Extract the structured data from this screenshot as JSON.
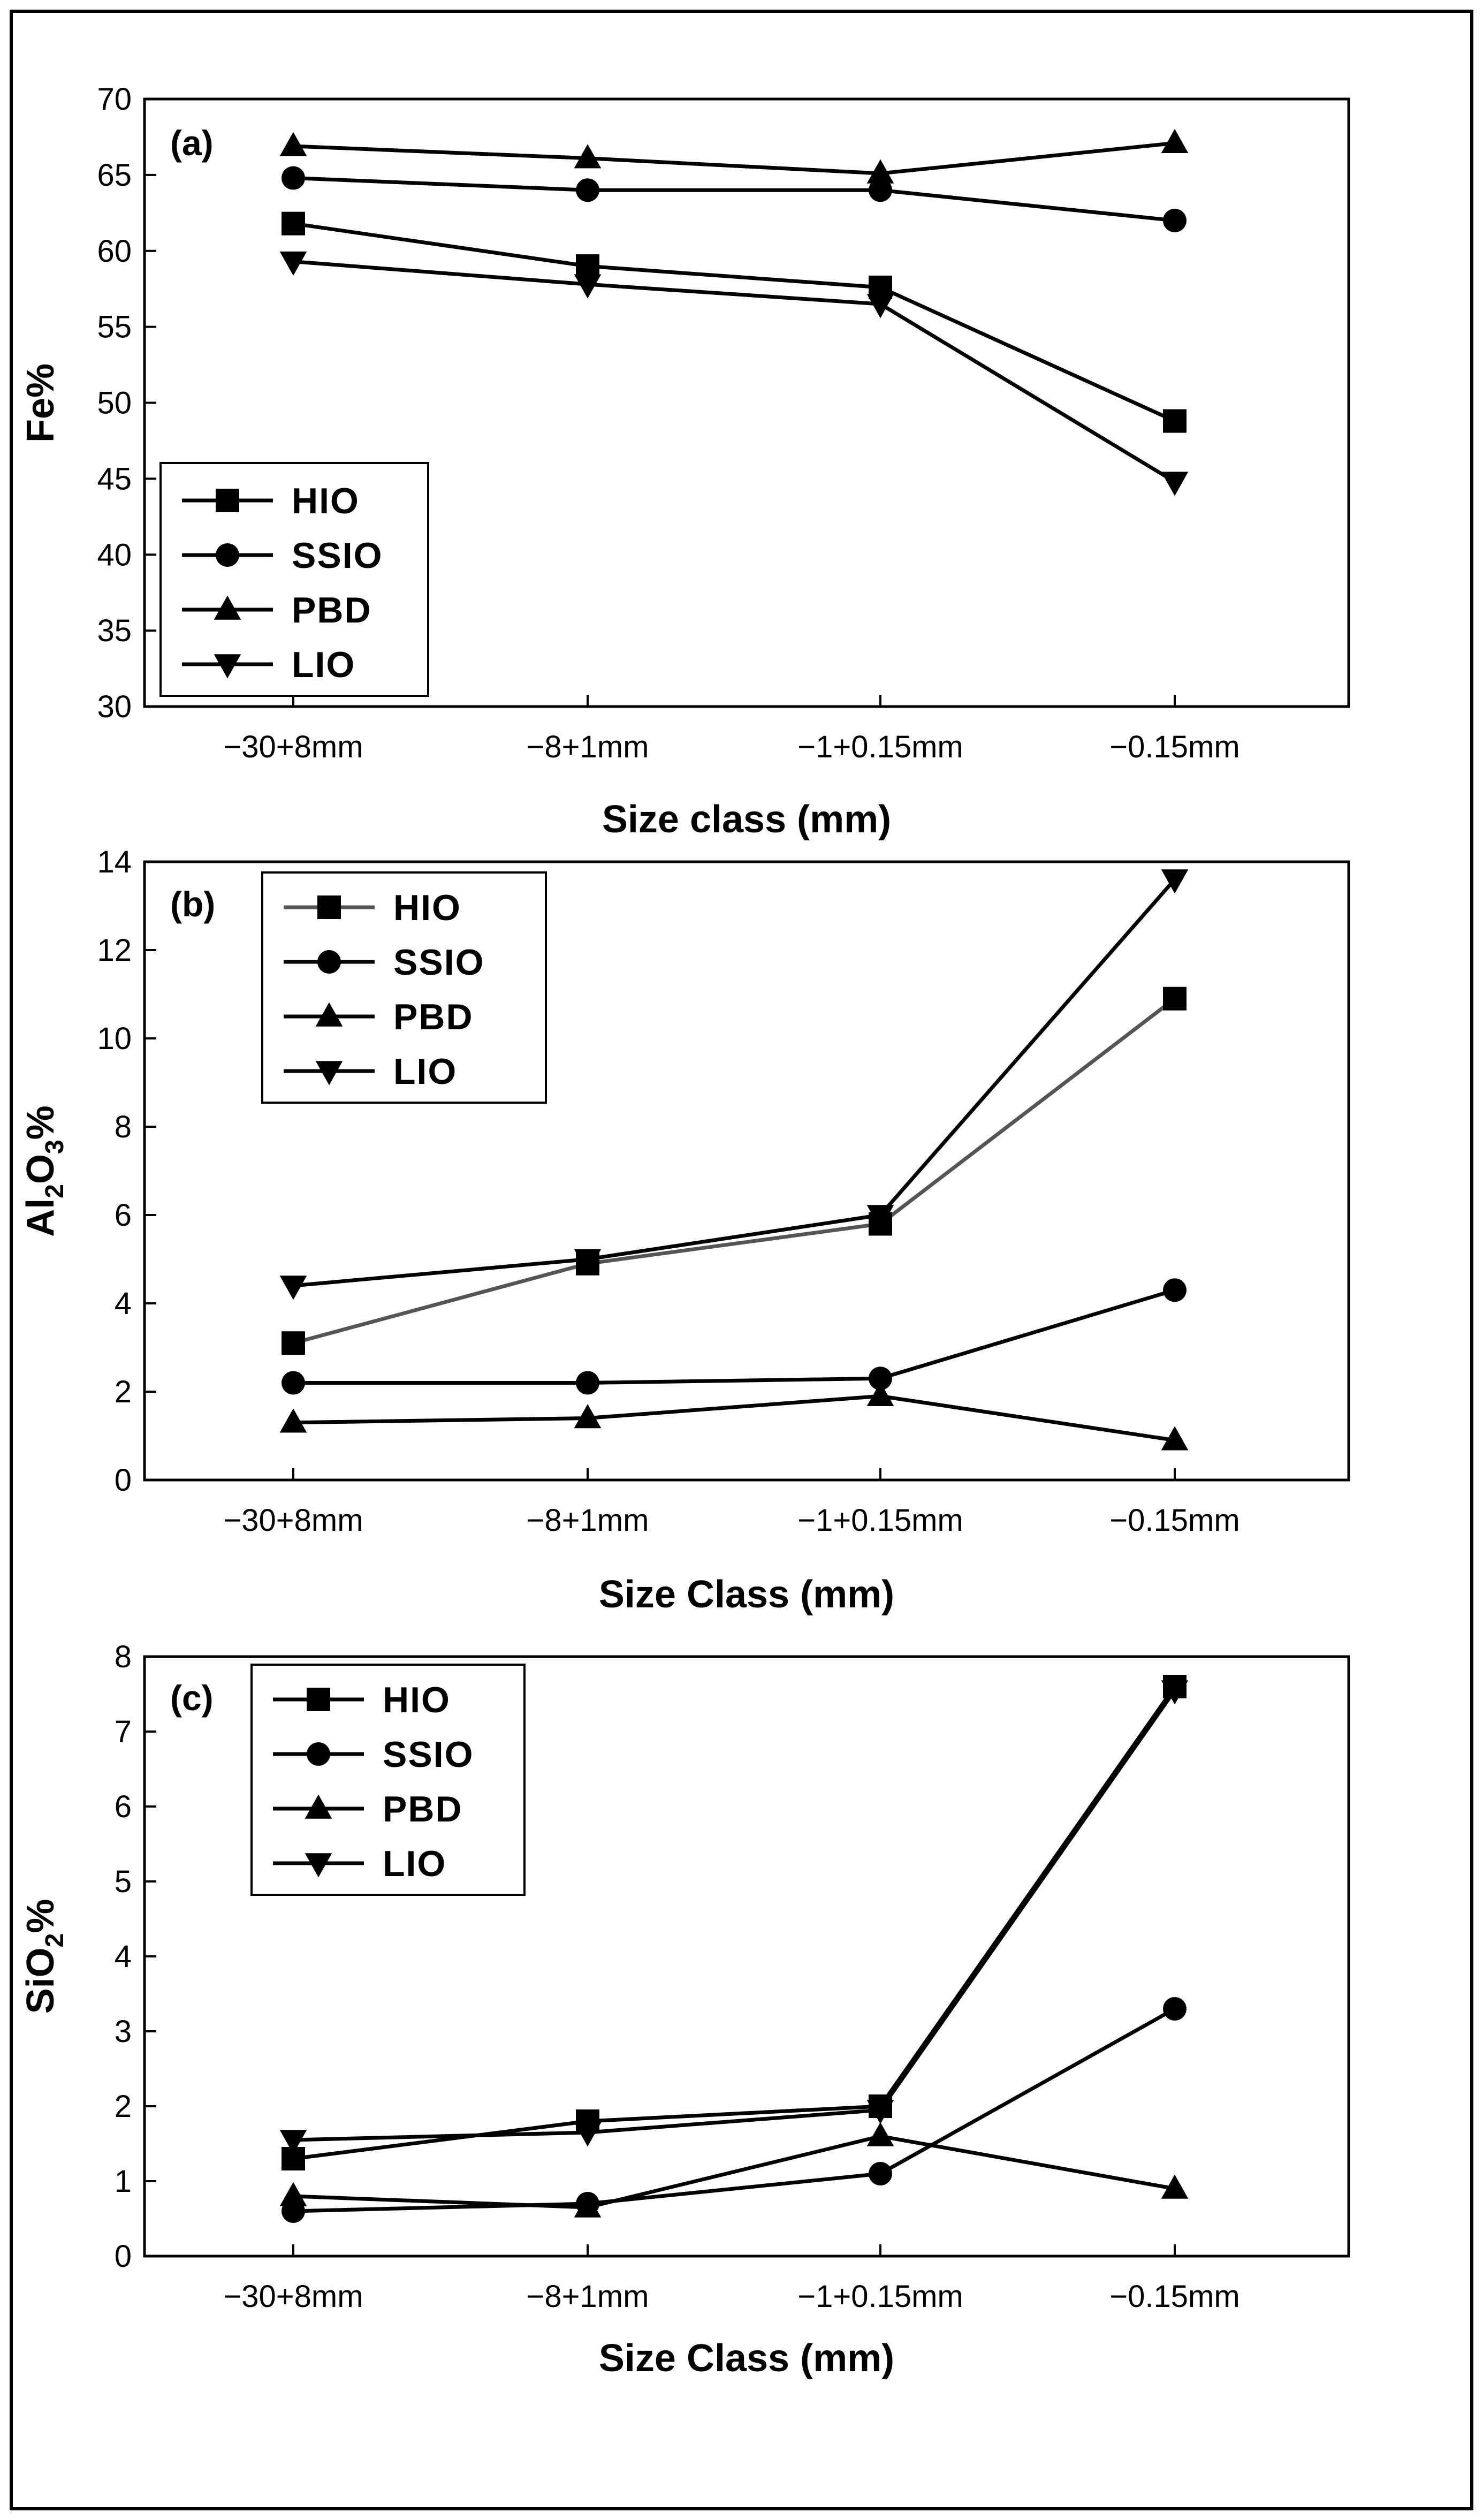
{
  "figure": {
    "series_style": {
      "HIO": {
        "marker": "square",
        "color": "#000000"
      },
      "SSIO": {
        "marker": "circle",
        "color": "#000000"
      },
      "PBD": {
        "marker": "triangle-up",
        "color": "#000000"
      },
      "LIO": {
        "marker": "triangle-down",
        "color": "#000000"
      }
    }
  },
  "chart_data": [
    {
      "type": "line",
      "panel_label": "(a)",
      "xlabel": "Size class (mm)",
      "ylabel": "Fe%",
      "categories": [
        "−30+8mm",
        "−8+1mm",
        "−1+0.15mm",
        "−0.15mm"
      ],
      "ylim": [
        30,
        70
      ],
      "yticks": [
        30,
        35,
        40,
        45,
        50,
        55,
        60,
        65,
        70
      ],
      "legend_position": "bottom-left",
      "series": [
        {
          "name": "HIO",
          "values": [
            61.8,
            59.0,
            57.6,
            48.8
          ]
        },
        {
          "name": "SSIO",
          "values": [
            64.8,
            64.0,
            64.0,
            62.0
          ]
        },
        {
          "name": "PBD",
          "values": [
            66.9,
            66.1,
            65.1,
            67.1
          ]
        },
        {
          "name": "LIO",
          "values": [
            59.3,
            57.8,
            56.5,
            44.8
          ]
        }
      ]
    },
    {
      "type": "line",
      "panel_label": "(b)",
      "xlabel": "Size Class (mm)",
      "ylabel": "Al2O3%",
      "ylabel_parts": {
        "a": "Al",
        "b": "2",
        "c": "O",
        "d": "3",
        "e": "%"
      },
      "categories": [
        "−30+8mm",
        "−8+1mm",
        "−1+0.15mm",
        "−0.15mm"
      ],
      "ylim": [
        0,
        14
      ],
      "yticks": [
        0,
        2,
        4,
        6,
        8,
        10,
        12,
        14
      ],
      "legend_position": "top-left",
      "series": [
        {
          "name": "HIO",
          "values": [
            3.1,
            4.9,
            5.8,
            10.9
          ],
          "line_color": "#555555"
        },
        {
          "name": "SSIO",
          "values": [
            2.2,
            2.2,
            2.3,
            4.3
          ]
        },
        {
          "name": "PBD",
          "values": [
            1.3,
            1.4,
            1.9,
            0.9
          ]
        },
        {
          "name": "LIO",
          "values": [
            4.4,
            5.0,
            6.0,
            13.6
          ]
        }
      ]
    },
    {
      "type": "line",
      "panel_label": "(c)",
      "xlabel": "Size Class (mm)",
      "ylabel": "SiO2%",
      "ylabel_parts": {
        "a": "SiO",
        "b": "2",
        "c": "%"
      },
      "categories": [
        "−30+8mm",
        "−8+1mm",
        "−1+0.15mm",
        "−0.15mm"
      ],
      "ylim": [
        0,
        8
      ],
      "yticks": [
        0,
        1,
        2,
        3,
        4,
        5,
        6,
        7,
        8
      ],
      "legend_position": "top-left",
      "series": [
        {
          "name": "HIO",
          "values": [
            1.3,
            1.8,
            2.0,
            7.6
          ]
        },
        {
          "name": "SSIO",
          "values": [
            0.6,
            0.7,
            1.1,
            3.3
          ]
        },
        {
          "name": "PBD",
          "values": [
            0.8,
            0.65,
            1.6,
            0.9
          ]
        },
        {
          "name": "LIO",
          "values": [
            1.55,
            1.65,
            1.95,
            7.55
          ]
        }
      ]
    }
  ]
}
